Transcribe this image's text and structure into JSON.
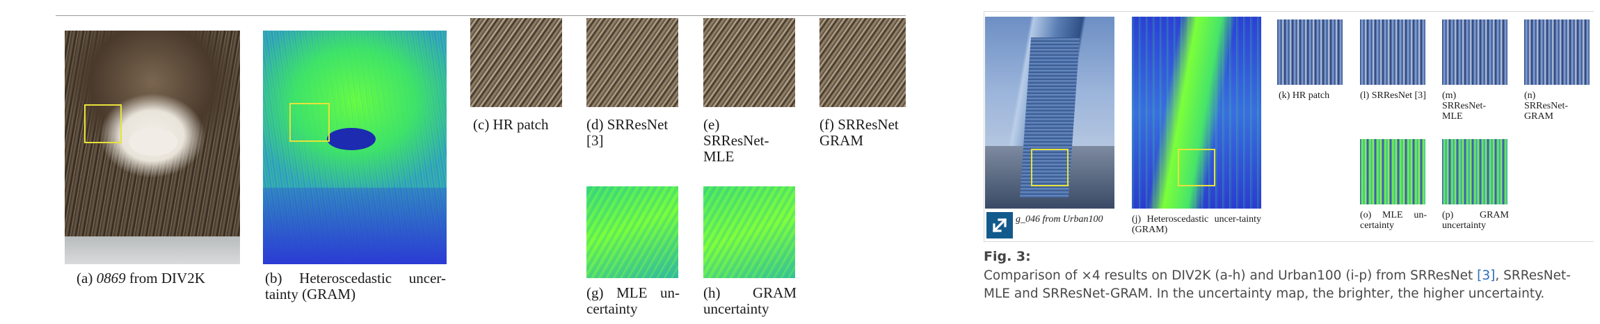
{
  "left_figure": {
    "captions": {
      "a_pre": "(a) ",
      "a_id": "0869",
      "a_post": " from DIV2K",
      "b": "(b)   Heteroscedastic   uncer-tainty (GRAM)",
      "c": "(c) HR patch",
      "d": "(d)  SRResNet [3]",
      "e": "(e) SRResNet-MLE",
      "f": "(f) SRResNet GRAM",
      "g": "(g)  MLE  un-certainty",
      "h": "(h)      GRAM uncertainty"
    }
  },
  "right_figure": {
    "captions": {
      "i": "g_046 from Urban100",
      "j": "(j)   Heteroscedastic   uncer-tainty (GRAM)",
      "k": "(k) HR patch",
      "l": "(l)   SRResNet [3]",
      "m": "(m) SRResNet-MLE",
      "n": "(n) SRResNet-GRAM",
      "o": "(o)  MLE  un-certainty",
      "p": "(p)      GRAM uncertainty"
    }
  },
  "figure_label": "Fig. 3:",
  "figure_caption": {
    "part1": "Comparison of ×4 results on DIV2K (a-h) and Urban100 (i-p) from SRResNet ",
    "ref": "[3]",
    "part2": ", SRResNet-MLE and SRResNet-GRAM. In the uncertainty map, the brighter, the higher uncertainty."
  },
  "icons": [
    "expand-icon"
  ],
  "colors": {
    "highlight_box": "#e8e23a",
    "uncertainty_low": "#2a3fd6",
    "uncertainty_high": "#7cff3a",
    "caption_link": "#2a6ebb",
    "expand_button": "#135a8c"
  }
}
